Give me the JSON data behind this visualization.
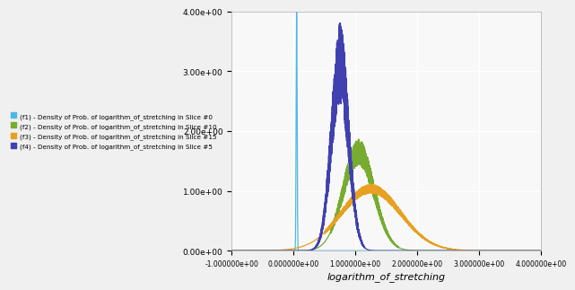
{
  "title": "",
  "xlabel": "logarithm_of_stretching",
  "ylabel": "",
  "xlim": [
    -1.0,
    4.0
  ],
  "ylim": [
    0.0,
    4.0
  ],
  "xticks": [
    -1.0,
    0.0,
    1.0,
    2.0,
    3.0,
    4.0
  ],
  "yticks": [
    0.0,
    1.0,
    2.0,
    3.0,
    4.0
  ],
  "legend": [
    {
      "label": "(f1) - Density of Prob. of logarithm_of_stretching in Slice #0",
      "color": "#4db8e8"
    },
    {
      "label": "(f2) - Density of Prob. of logarithm_of_stretching in Slice #10",
      "color": "#77ac30"
    },
    {
      "label": "(f3) - Density of Prob. of logarithm_of_stretching in Slice #15",
      "color": "#e8a020"
    },
    {
      "label": "(f4) - Density of Prob. of logarithm_of_stretching in Slice #5",
      "color": "#4040b0"
    }
  ],
  "plot_bg": "#f8f8f8",
  "fig_bg": "#f0f0f0",
  "grid_color": "#ffffff"
}
